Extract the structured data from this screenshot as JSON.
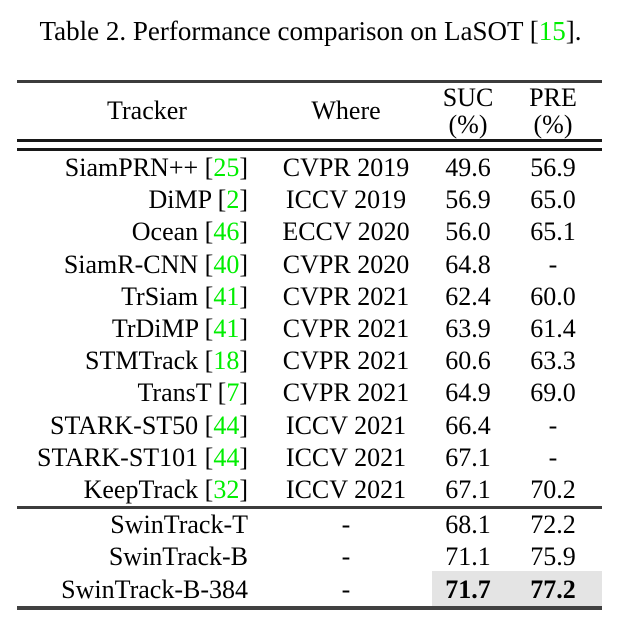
{
  "caption": {
    "prefix": "Table 2. Performance comparison on LaSOT [",
    "cite": "15",
    "suffix": "]."
  },
  "header": {
    "tracker": "Tracker",
    "where": "Where",
    "suc": {
      "label": "SUC",
      "unit": "(%)"
    },
    "pre": {
      "label": "PRE",
      "unit": "(%)"
    }
  },
  "rows_group1": [
    {
      "name": "SiamPRN++",
      "cite": "25",
      "where": "CVPR 2019",
      "suc": "49.6",
      "pre": "56.9"
    },
    {
      "name": "DiMP",
      "cite": "2",
      "where": "ICCV 2019",
      "suc": "56.9",
      "pre": "65.0"
    },
    {
      "name": "Ocean",
      "cite": "46",
      "where": "ECCV 2020",
      "suc": "56.0",
      "pre": "65.1"
    },
    {
      "name": "SiamR-CNN",
      "cite": "40",
      "where": "CVPR 2020",
      "suc": "64.8",
      "pre": "-"
    },
    {
      "name": "TrSiam",
      "cite": "41",
      "where": "CVPR 2021",
      "suc": "62.4",
      "pre": "60.0"
    },
    {
      "name": "TrDiMP",
      "cite": "41",
      "where": "CVPR 2021",
      "suc": "63.9",
      "pre": "61.4"
    },
    {
      "name": "STMTrack",
      "cite": "18",
      "where": "CVPR 2021",
      "suc": "60.6",
      "pre": "63.3"
    },
    {
      "name": "TransT",
      "cite": "7",
      "where": "CVPR 2021",
      "suc": "64.9",
      "pre": "69.0"
    },
    {
      "name": "STARK-ST50",
      "cite": "44",
      "where": "ICCV 2021",
      "suc": "66.4",
      "pre": "-"
    },
    {
      "name": "STARK-ST101",
      "cite": "44",
      "where": "ICCV 2021",
      "suc": "67.1",
      "pre": "-"
    },
    {
      "name": "KeepTrack",
      "cite": "32",
      "where": "ICCV 2021",
      "suc": "67.1",
      "pre": "70.2"
    }
  ],
  "rows_group2": [
    {
      "name": "SwinTrack-T",
      "cite": null,
      "where": "-",
      "suc": "68.1",
      "pre": "72.2",
      "bold": false,
      "highlight": false
    },
    {
      "name": "SwinTrack-B",
      "cite": null,
      "where": "-",
      "suc": "71.1",
      "pre": "75.9",
      "bold": false,
      "highlight": false
    },
    {
      "name": "SwinTrack-B-384",
      "cite": null,
      "where": "-",
      "suc": "71.7",
      "pre": "77.2",
      "bold": true,
      "highlight": true
    }
  ],
  "punctuation": {
    "bracket_open": " [",
    "bracket_close": "]"
  },
  "colors": {
    "citation_green": "#00ee00",
    "highlight_gray": "#e4e4e4",
    "rule_dark": "#2e2e2e",
    "text": "#000000",
    "background": "#ffffff"
  }
}
